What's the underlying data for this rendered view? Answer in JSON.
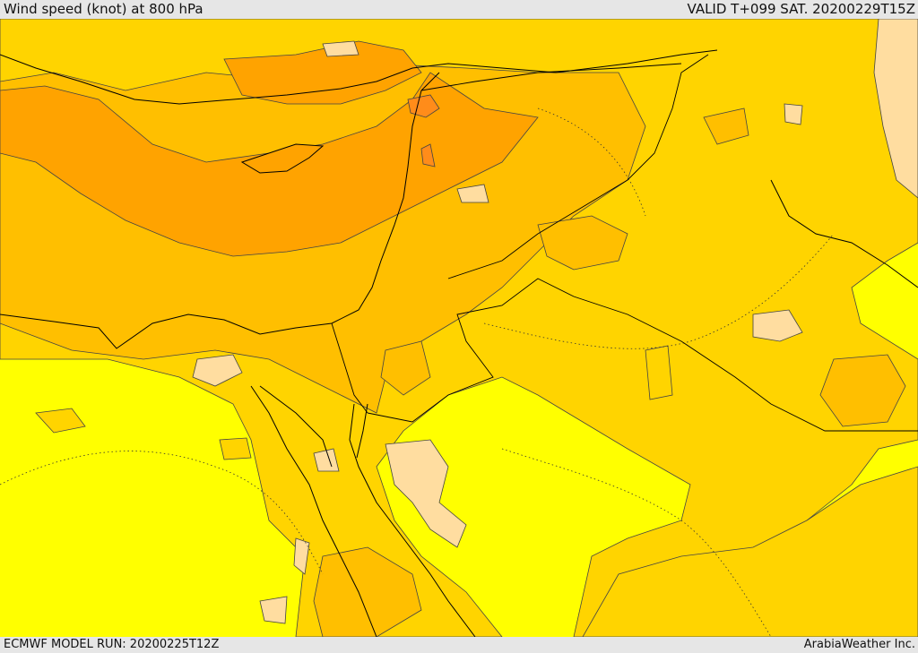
{
  "header": {
    "title": "Wind speed (knot) at 800 hPa",
    "valid": "VALID T+099 SAT. 20200229T15Z"
  },
  "footer": {
    "model_run": "ECMWF MODEL RUN: 20200225T12Z",
    "credit": "ArabiaWeather Inc."
  },
  "colors": {
    "background_yellow": "#ffff00",
    "light_gold": "#ffe600",
    "gold": "#ffd400",
    "amber": "#ffbf00",
    "orange": "#ffa300",
    "dark_orange": "#ff8c1a",
    "peach": "#ffdda0",
    "contour": "#444444",
    "boundary": "#000000"
  }
}
